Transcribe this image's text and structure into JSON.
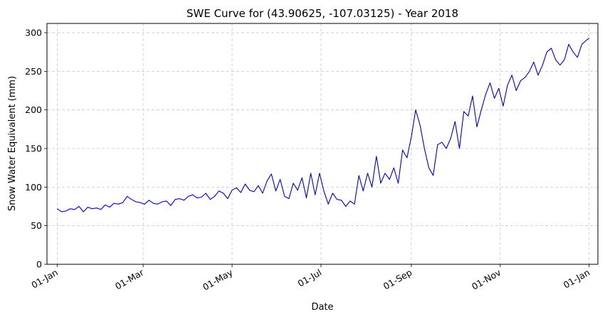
{
  "chart_data": {
    "type": "line",
    "title": "SWE Curve for (43.90625, -107.03125) - Year 2018",
    "xlabel": "Date",
    "ylabel": "Snow Water Equivalent (mm)",
    "x_range": [
      "2017-12-25",
      "2019-01-07"
    ],
    "ylim": [
      0,
      312
    ],
    "y_ticks": [
      0,
      50,
      100,
      150,
      200,
      250,
      300
    ],
    "x_ticks": [
      {
        "date": "2018-01-01",
        "label": "01-Jan"
      },
      {
        "date": "2018-03-01",
        "label": "01-Mar"
      },
      {
        "date": "2018-05-01",
        "label": "01-May"
      },
      {
        "date": "2018-07-01",
        "label": "01-Jul"
      },
      {
        "date": "2018-09-01",
        "label": "01-Sep"
      },
      {
        "date": "2018-11-01",
        "label": "01-Nov"
      },
      {
        "date": "2019-01-01",
        "label": "01-Jan"
      }
    ],
    "grid": true,
    "line_color": "#0000cc",
    "series": [
      {
        "x": [
          "2018-01-01",
          "2018-01-04",
          "2018-01-07",
          "2018-01-10",
          "2018-01-13",
          "2018-01-16",
          "2018-01-19",
          "2018-01-22",
          "2018-01-25",
          "2018-01-28",
          "2018-01-31",
          "2018-02-03",
          "2018-02-06",
          "2018-02-09",
          "2018-02-12",
          "2018-02-15",
          "2018-02-18",
          "2018-02-21",
          "2018-02-24",
          "2018-02-27",
          "2018-03-02",
          "2018-03-05",
          "2018-03-08",
          "2018-03-11",
          "2018-03-14",
          "2018-03-17",
          "2018-03-20",
          "2018-03-23",
          "2018-03-26",
          "2018-03-29",
          "2018-04-01",
          "2018-04-04",
          "2018-04-07",
          "2018-04-10",
          "2018-04-13",
          "2018-04-16",
          "2018-04-19",
          "2018-04-22",
          "2018-04-25",
          "2018-04-28",
          "2018-05-01",
          "2018-05-04",
          "2018-05-07",
          "2018-05-10",
          "2018-05-13",
          "2018-05-16",
          "2018-05-19",
          "2018-05-22",
          "2018-05-25",
          "2018-05-28",
          "2018-05-31",
          "2018-06-03",
          "2018-06-06",
          "2018-06-09",
          "2018-06-12",
          "2018-06-15",
          "2018-06-18",
          "2018-06-21",
          "2018-06-24",
          "2018-06-27",
          "2018-06-30",
          "2018-07-03",
          "2018-07-06",
          "2018-07-09",
          "2018-07-12",
          "2018-07-15",
          "2018-07-18",
          "2018-07-21",
          "2018-07-24",
          "2018-07-27",
          "2018-07-30",
          "2018-08-02",
          "2018-08-05",
          "2018-08-08",
          "2018-08-11",
          "2018-08-14",
          "2018-08-17",
          "2018-08-20",
          "2018-08-23",
          "2018-08-26",
          "2018-08-29",
          "2018-09-01",
          "2018-09-04",
          "2018-09-07",
          "2018-09-10",
          "2018-09-13",
          "2018-09-16",
          "2018-09-19",
          "2018-09-22",
          "2018-09-25",
          "2018-09-28",
          "2018-10-01",
          "2018-10-04",
          "2018-10-07",
          "2018-10-10",
          "2018-10-13",
          "2018-10-16",
          "2018-10-19",
          "2018-10-22",
          "2018-10-25",
          "2018-10-28",
          "2018-10-31",
          "2018-11-03",
          "2018-11-06",
          "2018-11-09",
          "2018-11-12",
          "2018-11-15",
          "2018-11-18",
          "2018-11-21",
          "2018-11-24",
          "2018-11-27",
          "2018-11-30",
          "2018-12-03",
          "2018-12-06",
          "2018-12-09",
          "2018-12-12",
          "2018-12-15",
          "2018-12-18",
          "2018-12-21",
          "2018-12-24",
          "2018-12-27",
          "2018-12-30",
          "2019-01-01"
        ],
        "values": [
          72,
          68,
          69,
          72,
          71,
          75,
          68,
          74,
          72,
          73,
          71,
          77,
          74,
          79,
          78,
          80,
          88,
          84,
          81,
          80,
          78,
          83,
          79,
          78,
          81,
          82,
          76,
          84,
          85,
          83,
          88,
          90,
          86,
          87,
          92,
          84,
          88,
          95,
          92,
          85,
          96,
          99,
          93,
          104,
          96,
          94,
          102,
          92,
          108,
          117,
          95,
          110,
          88,
          85,
          105,
          96,
          112,
          86,
          118,
          90,
          118,
          95,
          78,
          92,
          84,
          83,
          75,
          82,
          78,
          115,
          95,
          118,
          100,
          140,
          105,
          118,
          110,
          125,
          105,
          148,
          138,
          165,
          200,
          180,
          150,
          125,
          115,
          155,
          158,
          150,
          163,
          185,
          150,
          198,
          192,
          218,
          178,
          200,
          220,
          235,
          215,
          228,
          205,
          232,
          245,
          225,
          238,
          242,
          250,
          262,
          245,
          258,
          275,
          280,
          265,
          258,
          265,
          285,
          275,
          268,
          285,
          290,
          293
        ]
      }
    ]
  }
}
